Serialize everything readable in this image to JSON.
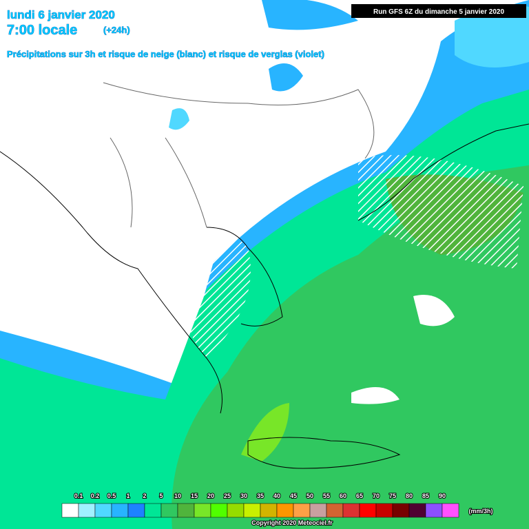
{
  "header": {
    "title": "lundi 6 janvier 2020",
    "time": "7:00 locale",
    "offset": "(+24h)",
    "subtitle": "Précipitations sur 3h et risque de neige (blanc) et risque de verglas (violet)",
    "run": "Run GFS 6Z du dimanche 5 janvier 2020"
  },
  "legend": {
    "labels": [
      "0.1",
      "0.2",
      "0.5",
      "1",
      "2",
      "5",
      "10",
      "15",
      "20",
      "25",
      "30",
      "35",
      "40",
      "45",
      "50",
      "55",
      "60",
      "65",
      "70",
      "75",
      "80",
      "85",
      "90"
    ],
    "colors": [
      "#ffffff",
      "#a0f0ff",
      "#50d8ff",
      "#28b4ff",
      "#1e82ff",
      "#00e696",
      "#30c860",
      "#50b43c",
      "#78e628",
      "#50ff00",
      "#96dc00",
      "#c8f000",
      "#d2b400",
      "#ff9600",
      "#ffa046",
      "#c8a0a0",
      "#d26432",
      "#dc3232",
      "#ff0000",
      "#c80000",
      "#780000",
      "#500032",
      "#8c50ff",
      "#ff50ff"
    ],
    "unit": "(mm/3h)"
  },
  "footer": {
    "copyright": "Copyright 2020 Meteociel.fr"
  }
}
